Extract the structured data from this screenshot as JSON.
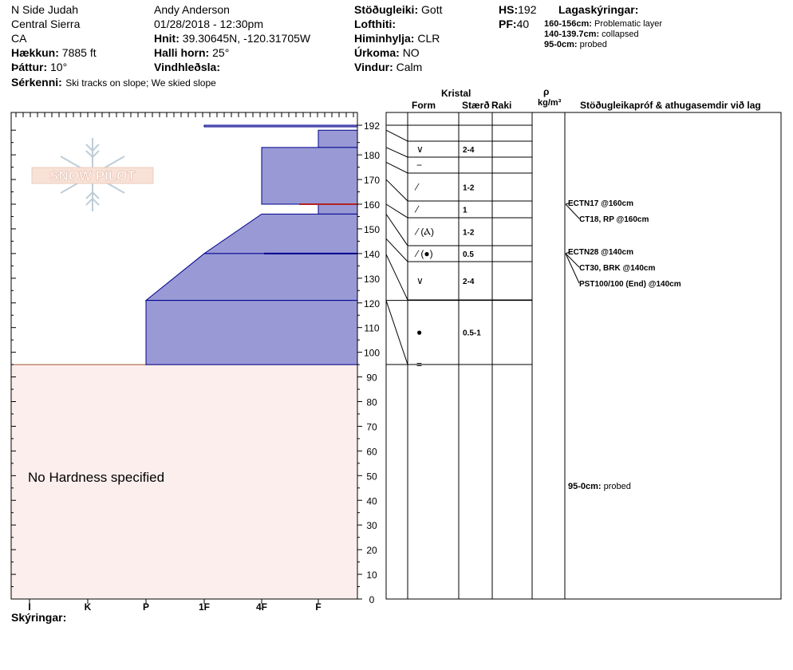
{
  "header": {
    "location": "N Side Judah",
    "range": "Central Sierra",
    "state": "CA",
    "elevation_label": "Hækkun:",
    "elevation_value": "7885 ft",
    "aspect_label": "Þáttur:",
    "aspect_value": "10°",
    "features_label": "Sérkenni:",
    "features_value": "Ski tracks on slope; We skied slope",
    "observer": "Andy Anderson",
    "datetime": "01/28/2018 - 12:30pm",
    "coords_label": "Hnit:",
    "coords_value": "39.30645N, -120.31705W",
    "slope_label": "Halli horn:",
    "slope_value": "25°",
    "wind_label": "Vindhleðsla:",
    "stability_label": "Stöðugleiki:",
    "stability_value": "Gott",
    "airtemp_label": "Lofthiti:",
    "sky_label": "Himinhylja:",
    "sky_value": "CLR",
    "precip_label": "Úrkoma:",
    "precip_value": "NO",
    "windspeed_label": "Vindur:",
    "windspeed_value": "Calm",
    "hs_label": "HS:",
    "hs_value": "192",
    "pf_label": "PF:",
    "pf_value": "40",
    "legend_title": "Lagaskýringar:",
    "legend_items": [
      {
        "range": "160-156cm:",
        "text": "Problematic layer"
      },
      {
        "range": "140-139.7cm:",
        "text": "collapsed"
      },
      {
        "range": "95-0cm:",
        "text": "probed"
      }
    ]
  },
  "column_headers": {
    "crystal": "Kristal",
    "form": "Form",
    "size": "Stærð",
    "moisture": "Raki",
    "rho": "ρ",
    "density_unit": "kg/m³",
    "stability": "Stöðugleikapróf & athugasemdir við lag"
  },
  "colors": {
    "hardness_fill": "#9999d6",
    "hardness_stroke": "#00008b",
    "no_hardness_fill": "#fdeeee",
    "problem_layer": "#b22222"
  },
  "logo_text": "SNOW PILOT",
  "no_hardness_text": "No Hardness specified",
  "footer_label": "Skýringar:",
  "chart_data": {
    "type": "snow-profile",
    "y_axis": {
      "min": 0,
      "max": 192,
      "ticks": [
        0,
        10,
        20,
        30,
        40,
        50,
        60,
        70,
        80,
        90,
        100,
        110,
        120,
        130,
        140,
        150,
        160,
        170,
        180,
        192
      ]
    },
    "x_axis": {
      "ticks": [
        "I",
        "K",
        "P",
        "1F",
        "4F",
        "F"
      ]
    },
    "hardness_layers": [
      {
        "top": 192,
        "bottom": 191.5,
        "hardness_top": "1F",
        "hardness_bottom": "1F"
      },
      {
        "top": 190,
        "bottom": 183,
        "hardness_top": "F",
        "hardness_bottom": "F"
      },
      {
        "top": 183,
        "bottom": 160,
        "hardness_top": "4F",
        "hardness_bottom": "4F"
      },
      {
        "top": 160,
        "bottom": 156,
        "hardness_top": "F",
        "hardness_bottom": "F"
      },
      {
        "top": 156,
        "bottom": 140,
        "hardness_top": "4F",
        "hardness_bottom": "1F"
      },
      {
        "top": 140,
        "bottom": 121,
        "hardness_top": "1F",
        "hardness_bottom": "P"
      },
      {
        "top": 121,
        "bottom": 95,
        "hardness_top": "P",
        "hardness_bottom": "P"
      }
    ],
    "crystal_rows": [
      {
        "top": 192,
        "bottom": 190,
        "form": "",
        "size": ""
      },
      {
        "top": 190,
        "bottom": 183,
        "form": "∨",
        "size": "2-4"
      },
      {
        "top": 183,
        "bottom": 177,
        "form": "−",
        "size": ""
      },
      {
        "top": 177,
        "bottom": 170,
        "form": "⁄",
        "size": "1-2"
      },
      {
        "top": 170,
        "bottom": 160,
        "form": "⁄",
        "size": "1"
      },
      {
        "top": 160,
        "bottom": 156,
        "form": "⁄ (Ⲁ)",
        "size": "1-2"
      },
      {
        "top": 156,
        "bottom": 146,
        "form": "⁄ (●)",
        "size": "0.5"
      },
      {
        "top": 146,
        "bottom": 139.7,
        "form": "∨",
        "size": "2-4"
      },
      {
        "top": 139.7,
        "bottom": 121,
        "form": "●",
        "size": "0.5-1"
      },
      {
        "top": 121,
        "bottom": 95,
        "form": "=",
        "size": ""
      }
    ],
    "tests": [
      {
        "depth": 160,
        "text": "ECTN17 @160cm",
        "bold": true
      },
      {
        "depth": 160,
        "text": "CT18, RP @160cm",
        "bold": true
      },
      {
        "depth": 140,
        "text": "ECTN28 @140cm",
        "bold": true
      },
      {
        "depth": 140,
        "text": "CT30, BRK @140cm",
        "bold": true
      },
      {
        "depth": 140,
        "text": "PST100/100 (End) @140cm",
        "bold": true
      }
    ],
    "probe_note": {
      "depth": 50,
      "range": "95-0cm:",
      "text": "probed"
    }
  }
}
